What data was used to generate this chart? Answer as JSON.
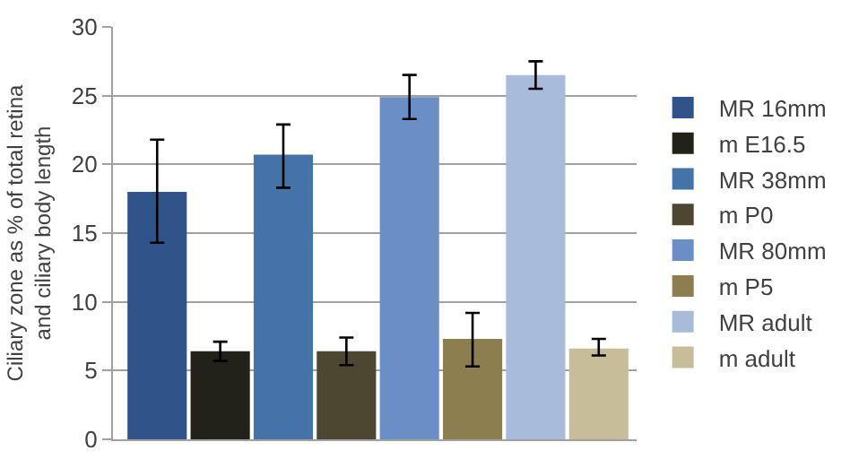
{
  "chart_data": {
    "type": "bar",
    "ylabel": "Ciliary zone as % of total retina\nand ciliary body length",
    "categories": [
      null,
      null,
      null,
      null,
      null,
      null,
      null,
      null
    ],
    "series": [
      {
        "name": "MR 16mm",
        "color": "#2f5489",
        "values": [
          18.0,
          null,
          null,
          null,
          null,
          null,
          null,
          null
        ],
        "errors": [
          [
            14.3,
            21.8
          ],
          null,
          null,
          null,
          null,
          null,
          null,
          null
        ]
      },
      {
        "name": "m E16.5",
        "color": "#22221a",
        "values": [
          null,
          6.4,
          null,
          null,
          null,
          null,
          null,
          null
        ],
        "errors": [
          null,
          [
            5.7,
            7.1
          ],
          null,
          null,
          null,
          null,
          null,
          null
        ]
      },
      {
        "name": "MR 38mm",
        "color": "#4572a8",
        "values": [
          null,
          null,
          20.7,
          null,
          null,
          null,
          null,
          null
        ],
        "errors": [
          null,
          null,
          [
            18.3,
            22.9
          ],
          null,
          null,
          null,
          null,
          null
        ]
      },
      {
        "name": "m P0",
        "color": "#4d4631",
        "values": [
          null,
          null,
          null,
          6.4,
          null,
          null,
          null,
          null
        ],
        "errors": [
          null,
          null,
          null,
          [
            5.4,
            7.4
          ],
          null,
          null,
          null,
          null
        ]
      },
      {
        "name": "MR 80mm",
        "color": "#6a8fc6",
        "values": [
          null,
          null,
          null,
          null,
          24.9,
          null,
          null,
          null
        ],
        "errors": [
          null,
          null,
          null,
          null,
          [
            23.3,
            26.5
          ],
          null,
          null,
          null
        ]
      },
      {
        "name": "m P5",
        "color": "#8c7e4f",
        "values": [
          null,
          null,
          null,
          null,
          null,
          7.3,
          null,
          null
        ],
        "errors": [
          null,
          null,
          null,
          null,
          null,
          [
            5.3,
            9.2
          ],
          null,
          null
        ]
      },
      {
        "name": "MR adult",
        "color": "#a8bbdb",
        "values": [
          null,
          null,
          null,
          null,
          null,
          null,
          26.5,
          null
        ],
        "errors": [
          null,
          null,
          null,
          null,
          null,
          null,
          [
            25.5,
            27.5
          ],
          null
        ]
      },
      {
        "name": "m adult",
        "color": "#c8bd99",
        "values": [
          null,
          null,
          null,
          null,
          null,
          null,
          null,
          6.6
        ],
        "errors": [
          null,
          null,
          null,
          null,
          null,
          null,
          null,
          [
            6.1,
            7.3
          ]
        ]
      }
    ],
    "ylim": [
      0,
      30
    ],
    "yticks": [
      0,
      5,
      10,
      15,
      20,
      25,
      30
    ],
    "grid": "y",
    "legend": "right"
  }
}
